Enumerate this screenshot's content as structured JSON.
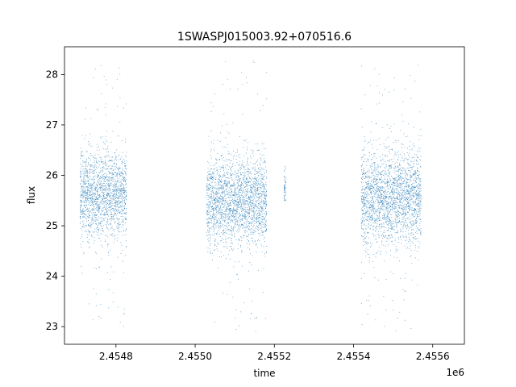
{
  "chart_data": {
    "type": "scatter",
    "title": "1SWASPJ015003.92+070516.6",
    "xlabel": "time",
    "ylabel": "flux",
    "x_offset_label": "1e6",
    "xlim": [
      2454670,
      2455680
    ],
    "ylim": [
      22.65,
      28.55
    ],
    "x_ticks": [
      2454800,
      2455000,
      2455200,
      2455400,
      2455600
    ],
    "x_tick_labels": [
      "2.4548",
      "2.4550",
      "2.4552",
      "2.4554",
      "2.4556"
    ],
    "y_ticks": [
      23,
      24,
      25,
      26,
      27,
      28
    ],
    "y_tick_labels": [
      "23",
      "24",
      "25",
      "26",
      "27",
      "28"
    ],
    "grid": false,
    "legend": "none",
    "series": [
      {
        "color": "#1f77b4",
        "marker": "dot",
        "observing_seasons": [
          {
            "x_range": [
              2454710,
              2454826
            ],
            "core_y_range": [
              24.9,
              26.3
            ],
            "y_extent": [
              23.0,
              28.2
            ]
          },
          {
            "x_range": [
              2455030,
              2455180
            ],
            "core_y_range": [
              24.8,
              26.2
            ],
            "y_extent": [
              22.9,
              28.3
            ]
          },
          {
            "x_range": [
              2455225,
              2455228
            ],
            "core_y_range": [
              25.5,
              26.0
            ],
            "y_extent": [
              25.5,
              27.0
            ]
          },
          {
            "x_range": [
              2455420,
              2455570
            ],
            "core_y_range": [
              24.8,
              26.3
            ],
            "y_extent": [
              22.9,
              28.2
            ]
          }
        ]
      }
    ]
  }
}
